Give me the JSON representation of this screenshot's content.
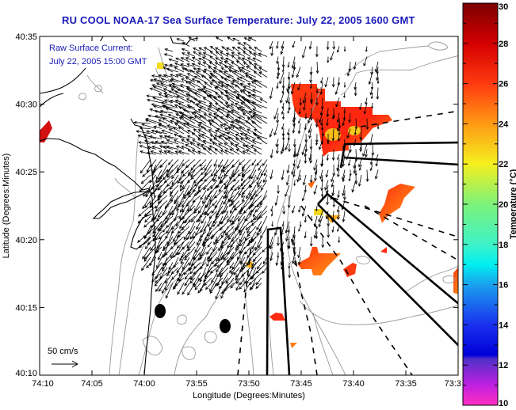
{
  "title": "RU COOL  NOAA-17  Sea Surface Temperature:  July 22, 2005 1600 GMT",
  "overlay": {
    "line1": "Raw Surface Current:",
    "line2": "July 22, 2005 15:00 GMT"
  },
  "scale_vector": {
    "label": "50 cm/s",
    "value_cm_s": 50
  },
  "axes": {
    "x_label": "Longitude (Degrees:Minutes)",
    "y_label": "Latitude (Degrees:Minutes)",
    "x_ticks": [
      "74:10",
      "74:05",
      "74:00",
      "73:55",
      "73:50",
      "73:45",
      "73:40",
      "73:35",
      "73:3"
    ],
    "y_ticks": [
      "40:35",
      "40:30",
      "40:25",
      "40:20",
      "40:15",
      "40:10"
    ]
  },
  "colorbar": {
    "label": "Temperature (°C)",
    "min": 10,
    "max": 30,
    "ticks": [
      "30",
      "28",
      "26",
      "24",
      "22",
      "20",
      "18",
      "16",
      "14",
      "12",
      "10"
    ],
    "stops": [
      {
        "value": 30,
        "color": "#7a0000"
      },
      {
        "value": 28,
        "color": "#d40000"
      },
      {
        "value": 26,
        "color": "#ff3a10"
      },
      {
        "value": 24,
        "color": "#ff9a14"
      },
      {
        "value": 22,
        "color": "#f5f01e"
      },
      {
        "value": 20,
        "color": "#7cf27a"
      },
      {
        "value": 18,
        "color": "#3ef2c8"
      },
      {
        "value": 17,
        "color": "#00f0f0"
      },
      {
        "value": 16,
        "color": "#1aa0ee"
      },
      {
        "value": 14,
        "color": "#1a30ee"
      },
      {
        "value": 12.5,
        "color": "#0000d8"
      },
      {
        "value": 12.3,
        "color": "#5030c8"
      },
      {
        "value": 11,
        "color": "#c020e0"
      },
      {
        "value": 10,
        "color": "#ff30c0"
      }
    ]
  },
  "colors": {
    "title": "#1a1ab8",
    "coast": "#000000",
    "isobath": "#999999",
    "sst_hot": "#ff2a10",
    "sst_warm": "#ff8c14",
    "sst_yellow": "#f5e21e"
  }
}
